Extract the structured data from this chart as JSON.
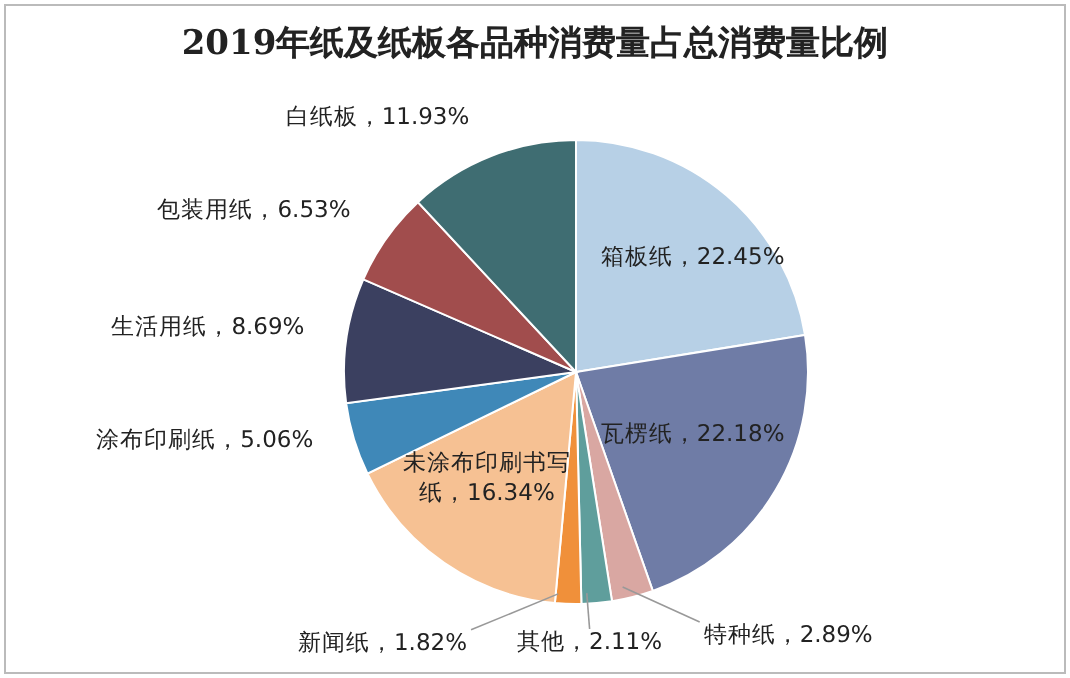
{
  "chart_data": {
    "type": "pie",
    "title": "2019年纸及纸板各品种消费量占总消费量比例",
    "categories": [
      "箱板纸",
      "瓦楞纸",
      "特种纸",
      "其他",
      "新闻纸",
      "未涂布印刷书写纸",
      "涂布印刷纸",
      "生活用纸",
      "包装用纸",
      "白纸板"
    ],
    "values": [
      22.45,
      22.18,
      2.89,
      2.11,
      1.82,
      16.34,
      5.06,
      8.69,
      6.53,
      11.93
    ],
    "value_labels": [
      "22.45%",
      "22.18%",
      "2.89%",
      "2.11%",
      "1.82%",
      "16.34%",
      "5.06%",
      "8.69%",
      "6.53%",
      "11.93%"
    ],
    "colors": [
      "#b7d0e6",
      "#6f7ca6",
      "#d9a7a2",
      "#5f9e9c",
      "#f0903a",
      "#f6c193",
      "#3f88b8",
      "#3b4060",
      "#a14d4d",
      "#3f6d72"
    ]
  }
}
